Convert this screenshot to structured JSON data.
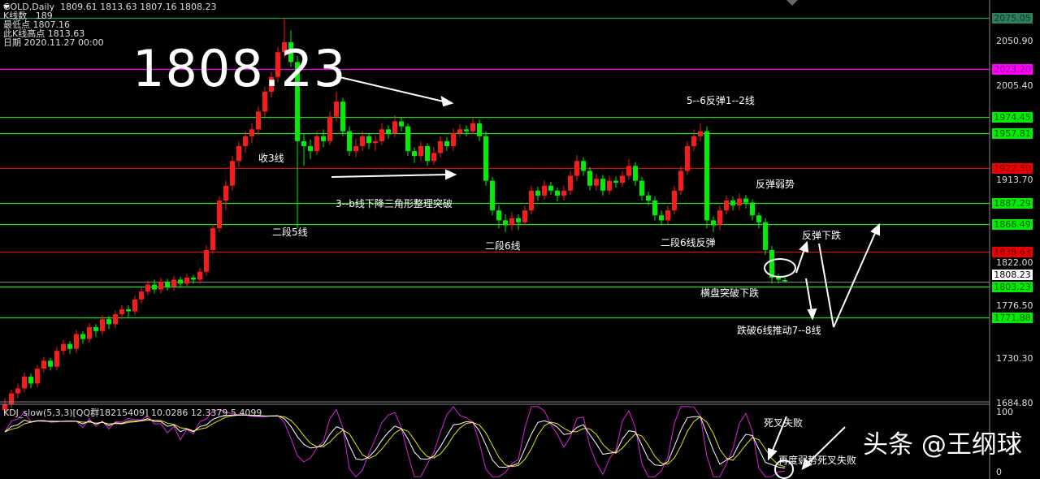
{
  "header": {
    "symbol_line": "GOLD,Daily  1809.61 1813.63 1807.16 1808.23",
    "bars_count": "K线数   189",
    "lowest": "最低点 1807.16",
    "bar_high": "此K线高点 1813.63",
    "date": "日期 2020.11.27 00:00"
  },
  "big_price": "1808.23",
  "annotations": {
    "a1": "收3线",
    "a2": "3--b线下降三角形整理突破",
    "a3": "二段5线",
    "a4": "二段6线",
    "a5": "5--6反弹1--2线",
    "a6": "二段6线反弹",
    "a7": "反弹弱势",
    "a8": "反弹下跌",
    "a9": "横盘突破下跌",
    "a10": "跌破6线推动7--8线",
    "a11": "死叉失败",
    "a12": "再度弱势死叉失败"
  },
  "watermark": "头条 @王纲球",
  "indicator": {
    "label": "KDJ_slow(5,3,3)[QQ群18215409] 10.0286 12.3379 5.4099",
    "scale_top": "100",
    "scale_bottom": "0"
  },
  "chart_data": {
    "type": "candlestick",
    "symbol": "GOLD",
    "timeframe": "Daily",
    "ylim": [
      1670,
      2085
    ],
    "y_ticks": [
      "2050.90",
      "2005.40",
      "1913.70",
      "1822.00",
      "1776.50",
      "1730.30",
      "1684.80"
    ],
    "colors": {
      "up": "#ff1a1a",
      "down": "#00ee00"
    },
    "levels": [
      {
        "value": "2075.05",
        "color": "#1f9d55",
        "label_bg": "#2e7d5b",
        "label_fg": "#0b3d22"
      },
      {
        "value": "2023.20",
        "color": "#ff00ff",
        "label_bg": "#ff00ff",
        "label_fg": "#7a007a"
      },
      {
        "value": "1974.45",
        "color": "#22dd22",
        "label_bg": "#00ee00",
        "label_fg": "#005500"
      },
      {
        "value": "1957.81",
        "color": "#22dd22",
        "label_bg": "#00ee00",
        "label_fg": "#005500"
      },
      {
        "value": "1922.50",
        "color": "#cc1111",
        "label_bg": "#ee0000",
        "label_fg": "#660000"
      },
      {
        "value": "1887.29",
        "color": "#22dd22",
        "label_bg": "#00ee00",
        "label_fg": "#005500"
      },
      {
        "value": "1866.49",
        "color": "#22dd22",
        "label_bg": "#00ee00",
        "label_fg": "#005500"
      },
      {
        "value": "1838.63",
        "color": "#cc1111",
        "label_bg": "#ee0000",
        "label_fg": "#660000"
      },
      {
        "value": "1808.23",
        "color": "#777777",
        "label_bg": "#ffffff",
        "label_fg": "#000000"
      },
      {
        "value": "1803.23",
        "color": "#22dd22",
        "label_bg": "#00ee00",
        "label_fg": "#005500"
      },
      {
        "value": "1771.88",
        "color": "#22dd22",
        "label_bg": "#00ee00",
        "label_fg": "#005500"
      }
    ],
    "kdj_colors": {
      "k": "#ffffff",
      "d": "#e6e600",
      "j": "#dd22dd"
    },
    "candles": [
      [
        1678,
        1690,
        1672,
        1684
      ],
      [
        1684,
        1699,
        1680,
        1695
      ],
      [
        1695,
        1705,
        1690,
        1700
      ],
      [
        1700,
        1716,
        1696,
        1712
      ],
      [
        1712,
        1715,
        1700,
        1705
      ],
      [
        1705,
        1724,
        1701,
        1720
      ],
      [
        1720,
        1732,
        1716,
        1728
      ],
      [
        1728,
        1731,
        1718,
        1722
      ],
      [
        1722,
        1742,
        1718,
        1738
      ],
      [
        1738,
        1749,
        1734,
        1745
      ],
      [
        1745,
        1748,
        1735,
        1740
      ],
      [
        1740,
        1759,
        1736,
        1755
      ],
      [
        1755,
        1758,
        1745,
        1750
      ],
      [
        1750,
        1766,
        1746,
        1762
      ],
      [
        1762,
        1765,
        1752,
        1758
      ],
      [
        1758,
        1774,
        1754,
        1770
      ],
      [
        1770,
        1773,
        1760,
        1765
      ],
      [
        1765,
        1779,
        1761,
        1775
      ],
      [
        1775,
        1784,
        1770,
        1780
      ],
      [
        1780,
        1784,
        1772,
        1778
      ],
      [
        1778,
        1794,
        1774,
        1790
      ],
      [
        1790,
        1802,
        1786,
        1798
      ],
      [
        1798,
        1809,
        1794,
        1805
      ],
      [
        1805,
        1810,
        1796,
        1800
      ],
      [
        1800,
        1812,
        1796,
        1808
      ],
      [
        1808,
        1811,
        1799,
        1803
      ],
      [
        1803,
        1814,
        1799,
        1810
      ],
      [
        1810,
        1813,
        1802,
        1806
      ],
      [
        1806,
        1816,
        1802,
        1812
      ],
      [
        1812,
        1815,
        1806,
        1810
      ],
      [
        1810,
        1822,
        1806,
        1818
      ],
      [
        1818,
        1845,
        1814,
        1840
      ],
      [
        1840,
        1866,
        1836,
        1862
      ],
      [
        1862,
        1894,
        1858,
        1890
      ],
      [
        1890,
        1910,
        1880,
        1905
      ],
      [
        1905,
        1935,
        1900,
        1930
      ],
      [
        1930,
        1950,
        1924,
        1945
      ],
      [
        1945,
        1960,
        1938,
        1955
      ],
      [
        1955,
        1968,
        1948,
        1962
      ],
      [
        1962,
        1985,
        1956,
        1980
      ],
      [
        1980,
        2005,
        1975,
        2000
      ],
      [
        2000,
        2020,
        1994,
        2015
      ],
      [
        2015,
        2045,
        2010,
        2040
      ],
      [
        2040,
        2075,
        2035,
        2050
      ],
      [
        2050,
        2062,
        2025,
        2030
      ],
      [
        2030,
        2036,
        1862,
        1950
      ],
      [
        1950,
        1958,
        1925,
        1945
      ],
      [
        1945,
        1952,
        1932,
        1940
      ],
      [
        1940,
        1960,
        1936,
        1955
      ],
      [
        1955,
        1962,
        1944,
        1950
      ],
      [
        1950,
        1980,
        1946,
        1975
      ],
      [
        1975,
        2000,
        1970,
        1990
      ],
      [
        1990,
        1994,
        1955,
        1960
      ],
      [
        1960,
        1965,
        1935,
        1940
      ],
      [
        1940,
        1952,
        1934,
        1945
      ],
      [
        1945,
        1960,
        1940,
        1955
      ],
      [
        1955,
        1958,
        1942,
        1948
      ],
      [
        1948,
        1956,
        1940,
        1950
      ],
      [
        1950,
        1968,
        1946,
        1962
      ],
      [
        1962,
        1966,
        1952,
        1958
      ],
      [
        1958,
        1976,
        1954,
        1970
      ],
      [
        1970,
        1974,
        1960,
        1965
      ],
      [
        1965,
        1968,
        1935,
        1940
      ],
      [
        1940,
        1944,
        1928,
        1935
      ],
      [
        1935,
        1950,
        1930,
        1945
      ],
      [
        1945,
        1948,
        1925,
        1930
      ],
      [
        1930,
        1944,
        1926,
        1938
      ],
      [
        1938,
        1955,
        1934,
        1950
      ],
      [
        1950,
        1954,
        1940,
        1945
      ],
      [
        1945,
        1963,
        1940,
        1958
      ],
      [
        1958,
        1967,
        1954,
        1962
      ],
      [
        1962,
        1966,
        1955,
        1960
      ],
      [
        1960,
        1974,
        1956,
        1968
      ],
      [
        1968,
        1972,
        1950,
        1955
      ],
      [
        1955,
        1960,
        1905,
        1910
      ],
      [
        1910,
        1914,
        1875,
        1880
      ],
      [
        1880,
        1885,
        1862,
        1870
      ],
      [
        1870,
        1876,
        1858,
        1865
      ],
      [
        1865,
        1878,
        1860,
        1872
      ],
      [
        1872,
        1876,
        1860,
        1868
      ],
      [
        1868,
        1885,
        1864,
        1880
      ],
      [
        1880,
        1905,
        1876,
        1900
      ],
      [
        1900,
        1904,
        1890,
        1895
      ],
      [
        1895,
        1910,
        1891,
        1905
      ],
      [
        1905,
        1909,
        1896,
        1900
      ],
      [
        1900,
        1903,
        1889,
        1895
      ],
      [
        1895,
        1905,
        1890,
        1900
      ],
      [
        1900,
        1920,
        1896,
        1915
      ],
      [
        1915,
        1936,
        1910,
        1930
      ],
      [
        1930,
        1934,
        1915,
        1920
      ],
      [
        1920,
        1924,
        1900,
        1905
      ],
      [
        1905,
        1917,
        1900,
        1912
      ],
      [
        1912,
        1916,
        1895,
        1900
      ],
      [
        1900,
        1915,
        1896,
        1910
      ],
      [
        1910,
        1914,
        1903,
        1908
      ],
      [
        1908,
        1920,
        1904,
        1915
      ],
      [
        1915,
        1932,
        1911,
        1925
      ],
      [
        1925,
        1929,
        1905,
        1910
      ],
      [
        1910,
        1914,
        1890,
        1895
      ],
      [
        1895,
        1899,
        1885,
        1890
      ],
      [
        1890,
        1894,
        1870,
        1875
      ],
      [
        1875,
        1880,
        1865,
        1870
      ],
      [
        1870,
        1885,
        1866,
        1880
      ],
      [
        1880,
        1905,
        1876,
        1900
      ],
      [
        1900,
        1925,
        1896,
        1920
      ],
      [
        1920,
        1950,
        1916,
        1945
      ],
      [
        1945,
        1962,
        1940,
        1955
      ],
      [
        1955,
        1968,
        1950,
        1960
      ],
      [
        1960,
        1965,
        1862,
        1870
      ],
      [
        1870,
        1874,
        1858,
        1865
      ],
      [
        1865,
        1885,
        1860,
        1880
      ],
      [
        1880,
        1895,
        1876,
        1890
      ],
      [
        1890,
        1894,
        1880,
        1885
      ],
      [
        1885,
        1897,
        1880,
        1892
      ],
      [
        1892,
        1896,
        1882,
        1888
      ],
      [
        1888,
        1891,
        1870,
        1875
      ],
      [
        1875,
        1878,
        1862,
        1868
      ],
      [
        1868,
        1872,
        1835,
        1840
      ],
      [
        1840,
        1844,
        1806,
        1812
      ],
      [
        1812,
        1816,
        1806,
        1810
      ],
      [
        1809.61,
        1813.63,
        1807.16,
        1808.23
      ]
    ]
  }
}
